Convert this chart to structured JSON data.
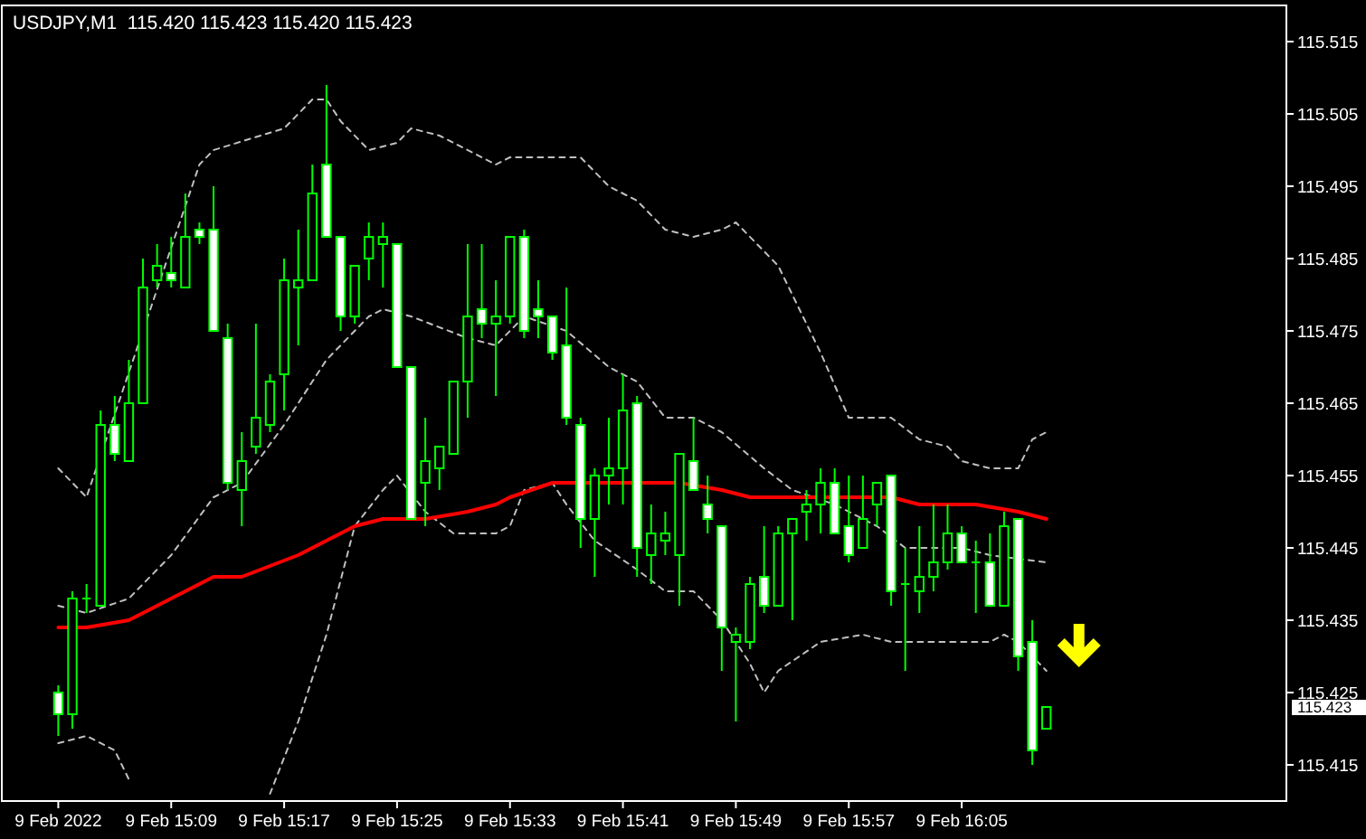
{
  "chart_data": {
    "type": "candlestick",
    "title": "USDJPY,M1  115.420 115.423 115.420 115.423",
    "color": "#00ff00",
    "x": [
      "2022-02-09T15:01",
      "2022-02-09T15:02",
      "2022-02-09T15:03",
      "2022-02-09T15:04",
      "2022-02-09T15:05",
      "2022-02-09T15:06",
      "2022-02-09T15:07",
      "2022-02-09T15:08",
      "2022-02-09T15:09",
      "2022-02-09T15:10",
      "2022-02-09T15:11",
      "2022-02-09T15:12",
      "2022-02-09T15:13",
      "2022-02-09T15:14",
      "2022-02-09T15:15",
      "2022-02-09T15:16",
      "2022-02-09T15:17",
      "2022-02-09T15:18",
      "2022-02-09T15:19",
      "2022-02-09T15:20",
      "2022-02-09T15:21",
      "2022-02-09T15:22",
      "2022-02-09T15:23",
      "2022-02-09T15:24",
      "2022-02-09T15:25",
      "2022-02-09T15:26",
      "2022-02-09T15:27",
      "2022-02-09T15:28",
      "2022-02-09T15:29",
      "2022-02-09T15:30",
      "2022-02-09T15:31",
      "2022-02-09T15:32",
      "2022-02-09T15:33",
      "2022-02-09T15:34",
      "2022-02-09T15:35",
      "2022-02-09T15:36",
      "2022-02-09T15:37",
      "2022-02-09T15:38",
      "2022-02-09T15:39",
      "2022-02-09T15:40",
      "2022-02-09T15:41",
      "2022-02-09T15:42",
      "2022-02-09T15:43",
      "2022-02-09T15:44",
      "2022-02-09T15:45",
      "2022-02-09T15:46",
      "2022-02-09T15:47",
      "2022-02-09T15:48",
      "2022-02-09T15:49",
      "2022-02-09T15:50",
      "2022-02-09T15:51",
      "2022-02-09T15:52",
      "2022-02-09T15:53",
      "2022-02-09T15:54",
      "2022-02-09T15:55",
      "2022-02-09T15:56",
      "2022-02-09T15:57",
      "2022-02-09T15:58",
      "2022-02-09T15:59",
      "2022-02-09T16:00",
      "2022-02-09T16:01",
      "2022-02-09T16:02",
      "2022-02-09T16:03",
      "2022-02-09T16:04",
      "2022-02-09T16:05",
      "2022-02-09T16:06",
      "2022-02-09T16:07",
      "2022-02-09T16:08",
      "2022-02-09T16:09",
      "2022-02-09T16:10",
      "2022-02-09T16:11"
    ],
    "ohlc": [
      [
        115.425,
        115.426,
        115.419,
        115.422
      ],
      [
        115.422,
        115.439,
        115.42,
        115.438
      ],
      [
        115.438,
        115.44,
        115.436,
        115.438
      ],
      [
        115.437,
        115.464,
        115.437,
        115.462
      ],
      [
        115.462,
        115.466,
        115.457,
        115.458
      ],
      [
        115.457,
        115.471,
        115.457,
        115.465
      ],
      [
        115.465,
        115.485,
        115.465,
        115.481
      ],
      [
        115.482,
        115.487,
        115.481,
        115.484
      ],
      [
        115.483,
        115.488,
        115.481,
        115.482
      ],
      [
        115.481,
        115.494,
        115.481,
        115.488
      ],
      [
        115.489,
        115.49,
        115.487,
        115.488
      ],
      [
        115.489,
        115.495,
        115.475,
        115.475
      ],
      [
        115.474,
        115.476,
        115.453,
        115.454
      ],
      [
        115.453,
        115.461,
        115.448,
        115.457
      ],
      [
        115.459,
        115.476,
        115.458,
        115.463
      ],
      [
        115.462,
        115.469,
        115.461,
        115.468
      ],
      [
        115.469,
        115.485,
        115.464,
        115.482
      ],
      [
        115.481,
        115.489,
        115.473,
        115.482
      ],
      [
        115.482,
        115.498,
        115.482,
        115.494
      ],
      [
        115.498,
        115.509,
        115.488,
        115.488
      ],
      [
        115.488,
        115.488,
        115.475,
        115.477
      ],
      [
        115.477,
        115.484,
        115.476,
        115.484
      ],
      [
        115.485,
        115.49,
        115.482,
        115.488
      ],
      [
        115.487,
        115.49,
        115.481,
        115.488
      ],
      [
        115.487,
        115.487,
        115.47,
        115.47
      ],
      [
        115.47,
        115.47,
        115.449,
        115.449
      ],
      [
        115.454,
        115.463,
        115.448,
        115.457
      ],
      [
        115.456,
        115.459,
        115.453,
        115.459
      ],
      [
        115.458,
        115.468,
        115.458,
        115.468
      ],
      [
        115.468,
        115.487,
        115.463,
        115.477
      ],
      [
        115.478,
        115.487,
        115.474,
        115.476
      ],
      [
        115.476,
        115.482,
        115.466,
        115.477
      ],
      [
        115.477,
        115.488,
        115.476,
        115.488
      ],
      [
        115.488,
        115.489,
        115.474,
        115.475
      ],
      [
        115.478,
        115.482,
        115.474,
        115.477
      ],
      [
        115.477,
        115.477,
        115.471,
        115.472
      ],
      [
        115.473,
        115.481,
        115.462,
        115.463
      ],
      [
        115.462,
        115.463,
        115.445,
        115.449
      ],
      [
        115.449,
        115.456,
        115.441,
        115.455
      ],
      [
        115.455,
        115.463,
        115.451,
        115.456
      ],
      [
        115.456,
        115.469,
        115.451,
        115.464
      ],
      [
        115.465,
        115.466,
        115.441,
        115.445
      ],
      [
        115.444,
        115.451,
        115.44,
        115.447
      ],
      [
        115.446,
        115.45,
        115.444,
        115.447
      ],
      [
        115.444,
        115.458,
        115.437,
        115.458
      ],
      [
        115.457,
        115.463,
        115.453,
        115.453
      ],
      [
        115.451,
        115.455,
        115.447,
        115.449
      ],
      [
        115.448,
        115.448,
        115.428,
        115.434
      ],
      [
        115.432,
        115.434,
        115.421,
        115.433
      ],
      [
        115.432,
        115.441,
        115.431,
        115.44
      ],
      [
        115.441,
        115.448,
        115.436,
        115.437
      ],
      [
        115.437,
        115.448,
        115.437,
        115.447
      ],
      [
        115.447,
        115.449,
        115.435,
        115.449
      ],
      [
        115.45,
        115.453,
        115.446,
        115.451
      ],
      [
        115.451,
        115.456,
        115.447,
        115.454
      ],
      [
        115.454,
        115.456,
        115.447,
        115.447
      ],
      [
        115.448,
        115.455,
        115.443,
        115.444
      ],
      [
        115.445,
        115.455,
        115.445,
        115.449
      ],
      [
        115.451,
        115.454,
        115.448,
        115.454
      ],
      [
        115.455,
        115.455,
        115.437,
        115.439
      ],
      [
        115.44,
        115.445,
        115.428,
        115.44
      ],
      [
        115.439,
        115.448,
        115.436,
        115.441
      ],
      [
        115.441,
        115.451,
        115.439,
        115.443
      ],
      [
        115.443,
        115.451,
        115.442,
        115.447
      ],
      [
        115.447,
        115.448,
        115.443,
        115.443
      ],
      [
        115.443,
        115.446,
        115.436,
        115.443
      ],
      [
        115.443,
        115.447,
        115.437,
        115.437
      ],
      [
        115.437,
        115.45,
        115.437,
        115.448
      ],
      [
        115.449,
        115.449,
        115.428,
        115.43
      ],
      [
        115.432,
        115.435,
        115.415,
        115.417
      ],
      [
        115.42,
        115.423,
        115.42,
        115.423
      ]
    ],
    "series": [
      {
        "type": "line",
        "color": "#c0c0c0",
        "line_style": "dashed",
        "x": [
          "2022-02-09T15:01",
          "2022-02-09T15:03",
          "2022-02-09T15:11",
          "2022-02-09T15:12",
          "2022-02-09T15:17",
          "2022-02-09T15:19",
          "2022-02-09T15:20",
          "2022-02-09T15:21",
          "2022-02-09T15:23",
          "2022-02-09T15:25",
          "2022-02-09T15:26",
          "2022-02-09T15:28",
          "2022-02-09T15:31",
          "2022-02-09T15:32",
          "2022-02-09T15:33",
          "2022-02-09T15:37",
          "2022-02-09T15:38",
          "2022-02-09T15:40",
          "2022-02-09T15:42",
          "2022-02-09T15:44",
          "2022-02-09T15:46",
          "2022-02-09T15:48",
          "2022-02-09T15:49",
          "2022-02-09T15:52",
          "2022-02-09T15:55",
          "2022-02-09T15:57",
          "2022-02-09T16:00",
          "2022-02-09T16:02",
          "2022-02-09T16:04",
          "2022-02-09T16:05",
          "2022-02-09T16:07",
          "2022-02-09T16:09",
          "2022-02-09T16:10",
          "2022-02-09T16:11"
        ],
        "values": [
          115.456,
          115.452,
          115.498,
          115.5,
          115.503,
          115.507,
          115.507,
          115.504,
          115.5,
          115.501,
          115.503,
          115.502,
          115.499,
          115.498,
          115.499,
          115.499,
          115.499,
          115.495,
          115.493,
          115.489,
          115.488,
          115.489,
          115.49,
          115.484,
          115.472,
          115.463,
          115.463,
          115.46,
          115.459,
          115.457,
          115.456,
          115.456,
          115.46,
          115.461
        ]
      },
      {
        "type": "line",
        "color": "#c0c0c0",
        "line_style": "dashed",
        "x": [
          "2022-02-09T15:01",
          "2022-02-09T15:03",
          "2022-02-09T15:06",
          "2022-02-09T15:09",
          "2022-02-09T15:12",
          "2022-02-09T15:14",
          "2022-02-09T15:17",
          "2022-02-09T15:20",
          "2022-02-09T15:23",
          "2022-02-09T15:24",
          "2022-02-09T15:26",
          "2022-02-09T15:30",
          "2022-02-09T15:32",
          "2022-02-09T15:34",
          "2022-02-09T15:37",
          "2022-02-09T15:40",
          "2022-02-09T15:42",
          "2022-02-09T15:44",
          "2022-02-09T15:46",
          "2022-02-09T15:48",
          "2022-02-09T15:51",
          "2022-02-09T15:53",
          "2022-02-09T15:56",
          "2022-02-09T15:59",
          "2022-02-09T16:01",
          "2022-02-09T16:05",
          "2022-02-09T16:07",
          "2022-02-09T16:11"
        ],
        "values": [
          115.437,
          115.436,
          115.438,
          115.444,
          115.452,
          115.454,
          115.462,
          115.471,
          115.477,
          115.478,
          115.477,
          115.474,
          115.473,
          115.477,
          115.475,
          115.47,
          115.468,
          115.463,
          115.463,
          115.461,
          115.456,
          115.453,
          115.451,
          115.448,
          115.445,
          115.445,
          115.444,
          115.443
        ]
      },
      {
        "type": "line",
        "color": "#c0c0c0",
        "line_style": "dashed",
        "x": [
          "2022-02-09T15:01",
          "2022-02-09T15:03",
          "2022-02-09T15:05",
          "2022-02-09T15:06",
          "2022-02-09T15:07",
          "2022-02-09T15:16",
          "2022-02-09T15:18",
          "2022-02-09T15:20",
          "2022-02-09T15:22",
          "2022-02-09T15:24",
          "2022-02-09T15:25",
          "2022-02-09T15:27",
          "2022-02-09T15:29",
          "2022-02-09T15:32",
          "2022-02-09T15:33",
          "2022-02-09T15:34",
          "2022-02-09T15:36",
          "2022-02-09T15:37",
          "2022-02-09T15:39",
          "2022-02-09T15:42",
          "2022-02-09T15:44",
          "2022-02-09T15:46",
          "2022-02-09T15:48",
          "2022-02-09T15:50",
          "2022-02-09T15:51",
          "2022-02-09T15:52",
          "2022-02-09T15:55",
          "2022-02-09T15:58",
          "2022-02-09T16:00",
          "2022-02-09T16:02",
          "2022-02-09T16:05",
          "2022-02-09T16:07",
          "2022-02-09T16:08",
          "2022-02-09T16:09",
          "2022-02-09T16:11"
        ],
        "values": [
          115.418,
          115.419,
          115.417,
          115.413,
          null,
          115.411,
          115.421,
          115.433,
          115.448,
          115.453,
          115.455,
          115.45,
          115.447,
          115.447,
          115.448,
          115.453,
          115.454,
          115.451,
          115.446,
          115.442,
          115.439,
          115.439,
          115.435,
          115.429,
          115.425,
          115.428,
          115.432,
          115.433,
          115.432,
          115.432,
          115.432,
          115.432,
          115.433,
          115.432,
          115.428
        ]
      },
      {
        "type": "line",
        "color": "#ff0000",
        "line_style": "solid",
        "x": [
          "2022-02-09T15:01",
          "2022-02-09T15:03",
          "2022-02-09T15:06",
          "2022-02-09T15:12",
          "2022-02-09T15:14",
          "2022-02-09T15:18",
          "2022-02-09T15:20",
          "2022-02-09T15:22",
          "2022-02-09T15:24",
          "2022-02-09T15:27",
          "2022-02-09T15:30",
          "2022-02-09T15:32",
          "2022-02-09T15:33",
          "2022-02-09T15:36",
          "2022-02-09T15:43",
          "2022-02-09T15:45",
          "2022-02-09T15:48",
          "2022-02-09T15:50",
          "2022-02-09T15:55",
          "2022-02-09T16:00",
          "2022-02-09T16:02",
          "2022-02-09T16:06",
          "2022-02-09T16:09",
          "2022-02-09T16:11"
        ],
        "values": [
          115.434,
          115.434,
          115.435,
          115.441,
          115.441,
          115.444,
          115.446,
          115.448,
          115.449,
          115.449,
          115.45,
          115.451,
          115.452,
          115.454,
          115.454,
          115.454,
          115.453,
          115.452,
          115.452,
          115.452,
          115.451,
          115.451,
          115.45,
          115.449
        ]
      }
    ],
    "xlim": [
      "2022-02-09T14:57",
      "2022-02-09T16:28"
    ],
    "xticks": [
      {
        "value": "2022-02-09T15:01",
        "label": "9 Feb 2022"
      },
      {
        "value": "2022-02-09T15:09",
        "label": "9 Feb 15:09"
      },
      {
        "value": "2022-02-09T15:17",
        "label": "9 Feb 15:17"
      },
      {
        "value": "2022-02-09T15:25",
        "label": "9 Feb 15:25"
      },
      {
        "value": "2022-02-09T15:33",
        "label": "9 Feb 15:33"
      },
      {
        "value": "2022-02-09T15:41",
        "label": "9 Feb 15:41"
      },
      {
        "value": "2022-02-09T15:49",
        "label": "9 Feb 15:49"
      },
      {
        "value": "2022-02-09T15:57",
        "label": "9 Feb 15:57"
      },
      {
        "value": "2022-02-09T16:05",
        "label": "9 Feb 16:05"
      }
    ],
    "ylim": [
      115.41,
      115.52
    ],
    "yticks": [
      115.415,
      115.425,
      115.435,
      115.445,
      115.455,
      115.465,
      115.475,
      115.485,
      115.495,
      115.505,
      115.515
    ],
    "annotations": [
      "115.423"
    ]
  }
}
